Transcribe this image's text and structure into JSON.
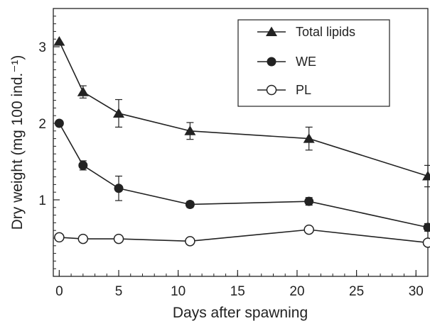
{
  "chart_data": {
    "type": "line",
    "title": "",
    "xlabel": "Days after spawning",
    "ylabel": "Dry weight (mg 100 ind.⁻¹)",
    "xlim": [
      -0.5,
      31
    ],
    "ylim": [
      0,
      3.5
    ],
    "x_ticks": [
      0,
      5,
      10,
      15,
      20,
      25,
      30
    ],
    "y_ticks": [
      1,
      2,
      3
    ],
    "x_minor_step": 1,
    "y_minor_step": 0.1,
    "grid": false,
    "legend_position": "top-right",
    "series": [
      {
        "name": "Total lipids",
        "marker": "filled-triangle",
        "x": [
          0,
          2,
          5,
          11,
          21,
          31
        ],
        "y": [
          3.07,
          2.41,
          2.13,
          1.9,
          1.8,
          1.31
        ],
        "error": [
          0.0,
          0.08,
          0.18,
          0.11,
          0.15,
          0.14
        ]
      },
      {
        "name": "WE",
        "marker": "filled-circle",
        "x": [
          0,
          2,
          5,
          11,
          21,
          31
        ],
        "y": [
          2.0,
          1.45,
          1.15,
          0.94,
          0.98,
          0.64
        ],
        "error": [
          0.0,
          0.06,
          0.16,
          0.04,
          0.05,
          0.05
        ]
      },
      {
        "name": "PL",
        "marker": "open-circle",
        "x": [
          0,
          2,
          5,
          11,
          21,
          31
        ],
        "y": [
          0.51,
          0.49,
          0.49,
          0.46,
          0.61,
          0.44
        ],
        "error": [
          0,
          0,
          0,
          0,
          0,
          0
        ]
      }
    ]
  }
}
